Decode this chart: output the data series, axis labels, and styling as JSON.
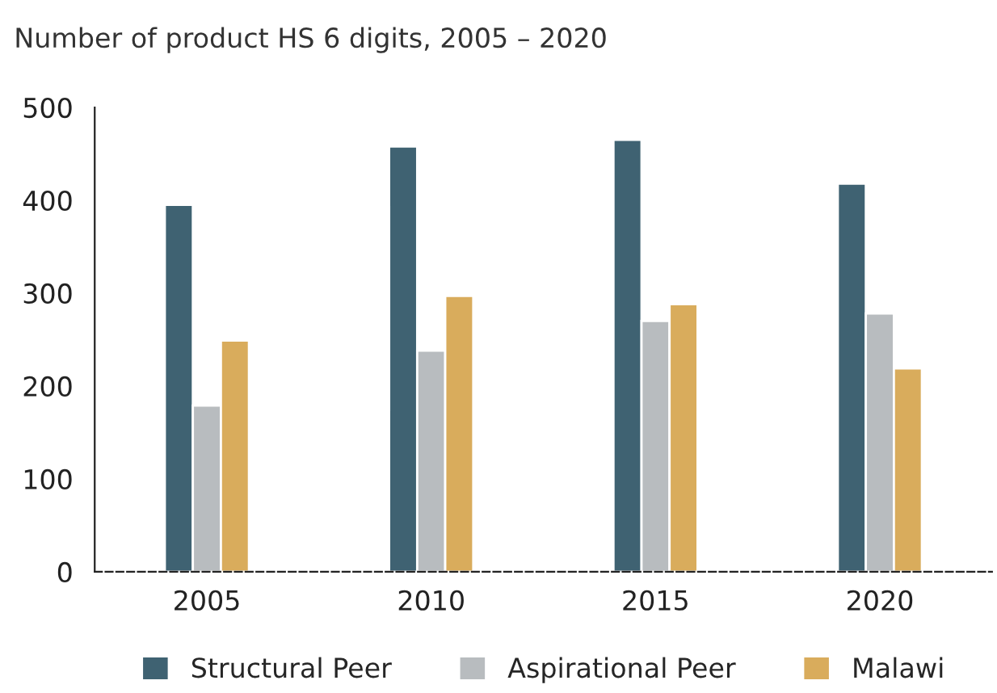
{
  "chart_data": {
    "type": "bar",
    "title": "Number of product HS 6 digits, 2005 – 2020",
    "categories": [
      "2005",
      "2010",
      "2015",
      "2020"
    ],
    "series": [
      {
        "name": "Structural Peer",
        "color": "#3f6272",
        "values": [
          395,
          458,
          465,
          418
        ]
      },
      {
        "name": "Aspirational Peer",
        "color": "#b8bcbf",
        "values": [
          179,
          238,
          270,
          278
        ]
      },
      {
        "name": "Malawi",
        "color": "#d9ac5c",
        "values": [
          249,
          297,
          288,
          219
        ]
      }
    ],
    "ylim": [
      0,
      500
    ],
    "yticks": [
      0,
      100,
      200,
      300,
      400,
      500
    ],
    "grid": false,
    "legend": "bottom"
  }
}
